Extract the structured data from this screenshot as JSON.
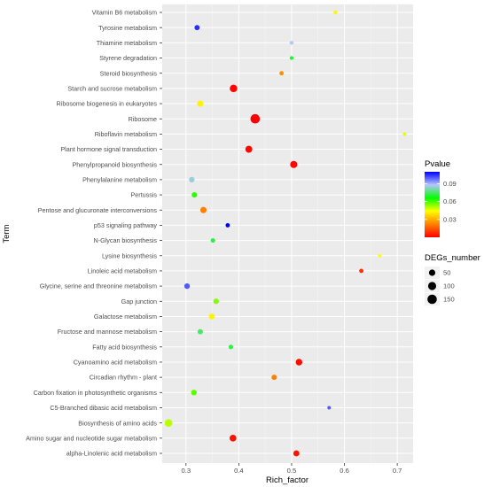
{
  "chart_data": {
    "type": "scatter",
    "xlabel": "Rich_factor",
    "ylabel": "Term",
    "xlim": [
      0.255,
      0.73
    ],
    "x_ticks": [
      0.3,
      0.4,
      0.5,
      0.6,
      0.7
    ],
    "x_tick_labels": [
      "0.3",
      "0.4",
      "0.5",
      "0.6",
      "0.7"
    ],
    "grid": true,
    "legend_position": "right",
    "color_legend": {
      "title": "Pvalue",
      "range": [
        0.0,
        0.11
      ],
      "ticks": [
        0.09,
        0.06,
        0.03
      ],
      "tick_labels": [
        "0.09",
        "0.06",
        "0.03"
      ],
      "colors_low_to_high": [
        "#ff0000",
        "#ff8000",
        "#ffff00",
        "#00ff00",
        "#b3c6ff",
        "#0000ff"
      ]
    },
    "size_legend": {
      "title": "DEGs_number",
      "values": [
        50,
        100,
        150
      ],
      "labels": [
        "50",
        "100",
        "150"
      ]
    },
    "terms": [
      "Vitamin B6 metabolism",
      "Tyrosine metabolism",
      "Thiamine metabolism",
      "Styrene degradation",
      "Steroid biosynthesis",
      "Starch and sucrose metabolism",
      "Ribosome biogenesis in eukaryotes",
      "Ribosome",
      "Riboflavin metabolism",
      "Plant hormone signal transduction",
      "Phenylpropanoid biosynthesis",
      "Phenylalanine metabolism",
      "Pertussis",
      "Pentose and glucuronate interconversions",
      "p53 signaling pathway",
      "N-Glycan biosynthesis",
      "Lysine biosynthesis",
      "Linoleic acid metabolism",
      "Glycine, serine and threonine metabolism",
      "Gap junction",
      "Galactose metabolism",
      "Fructose and mannose metabolism",
      "Fatty acid biosynthesis",
      "Cyanoamino acid metabolism",
      "Circadian rhythm - plant",
      "Carbon fixation in photosynthetic organisms",
      "C5-Branched dibasic acid metabolism",
      "Biosynthesis of amino acids",
      "Amino sugar and nucleotide sugar metabolism",
      "alpha-Linolenic acid metabolism"
    ],
    "points": [
      {
        "term": "Vitamin B6 metabolism",
        "rich_factor": 0.583,
        "pvalue": 0.043,
        "degs": 8
      },
      {
        "term": "Tyrosine metabolism",
        "rich_factor": 0.321,
        "pvalue": 0.105,
        "degs": 25
      },
      {
        "term": "Thiamine metabolism",
        "rich_factor": 0.5,
        "pvalue": 0.088,
        "degs": 8
      },
      {
        "term": "Styrene degradation",
        "rich_factor": 0.5,
        "pvalue": 0.07,
        "degs": 7
      },
      {
        "term": "Steroid biosynthesis",
        "rich_factor": 0.481,
        "pvalue": 0.025,
        "degs": 13
      },
      {
        "term": "Starch and sucrose metabolism",
        "rich_factor": 0.39,
        "pvalue": 0.001,
        "degs": 80
      },
      {
        "term": "Ribosome biogenesis in eukaryotes",
        "rich_factor": 0.327,
        "pvalue": 0.042,
        "degs": 45
      },
      {
        "term": "Ribosome",
        "rich_factor": 0.431,
        "pvalue": 0.0,
        "degs": 150
      },
      {
        "term": "Riboflavin metabolism",
        "rich_factor": 0.714,
        "pvalue": 0.046,
        "degs": 5
      },
      {
        "term": "Plant hormone signal transduction",
        "rich_factor": 0.419,
        "pvalue": 0.001,
        "degs": 65
      },
      {
        "term": "Phenylpropanoid biosynthesis",
        "rich_factor": 0.504,
        "pvalue": 0.001,
        "degs": 70
      },
      {
        "term": "Phenylalanine metabolism",
        "rich_factor": 0.311,
        "pvalue": 0.085,
        "degs": 33
      },
      {
        "term": "Pertussis",
        "rich_factor": 0.316,
        "pvalue": 0.062,
        "degs": 30
      },
      {
        "term": "Pentose and glucuronate interconversions",
        "rich_factor": 0.333,
        "pvalue": 0.022,
        "degs": 48
      },
      {
        "term": "p53 signaling pathway",
        "rich_factor": 0.379,
        "pvalue": 0.11,
        "degs": 12
      },
      {
        "term": "N-Glycan biosynthesis",
        "rich_factor": 0.351,
        "pvalue": 0.072,
        "degs": 15
      },
      {
        "term": "Lysine biosynthesis",
        "rich_factor": 0.667,
        "pvalue": 0.044,
        "degs": 6
      },
      {
        "term": "Linoleic acid metabolism",
        "rich_factor": 0.632,
        "pvalue": 0.008,
        "degs": 12
      },
      {
        "term": "Glycine, serine and threonine metabolism",
        "rich_factor": 0.302,
        "pvalue": 0.1,
        "degs": 32
      },
      {
        "term": "Gap junction",
        "rich_factor": 0.357,
        "pvalue": 0.055,
        "degs": 30
      },
      {
        "term": "Galactose metabolism",
        "rich_factor": 0.349,
        "pvalue": 0.042,
        "degs": 38
      },
      {
        "term": "Fructose and mannose metabolism",
        "rich_factor": 0.327,
        "pvalue": 0.075,
        "degs": 28
      },
      {
        "term": "Fatty acid biosynthesis",
        "rich_factor": 0.385,
        "pvalue": 0.072,
        "degs": 15
      },
      {
        "term": "Cyanoamino acid metabolism",
        "rich_factor": 0.514,
        "pvalue": 0.002,
        "degs": 55
      },
      {
        "term": "Circadian rhythm - plant",
        "rich_factor": 0.467,
        "pvalue": 0.022,
        "degs": 28
      },
      {
        "term": "Carbon fixation in photosynthetic organisms",
        "rich_factor": 0.315,
        "pvalue": 0.058,
        "degs": 35
      },
      {
        "term": "C5-Branched dibasic acid metabolism",
        "rich_factor": 0.571,
        "pvalue": 0.1,
        "degs": 4
      },
      {
        "term": "Biosynthesis of amino acids",
        "rich_factor": 0.267,
        "pvalue": 0.05,
        "degs": 85
      },
      {
        "term": "Amino sugar and nucleotide sugar metabolism",
        "rich_factor": 0.389,
        "pvalue": 0.003,
        "degs": 60
      },
      {
        "term": "alpha-Linolenic acid metabolism",
        "rich_factor": 0.509,
        "pvalue": 0.003,
        "degs": 42
      }
    ]
  }
}
